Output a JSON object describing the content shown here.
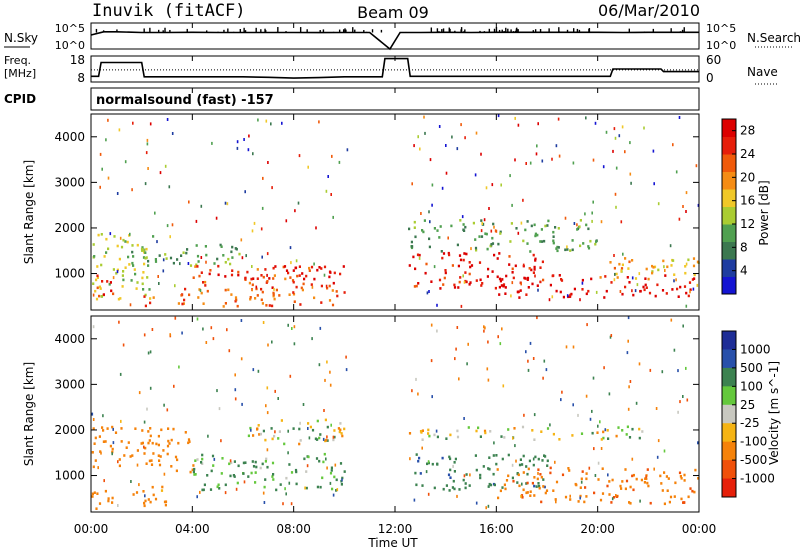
{
  "header": {
    "station": "Inuvik (fitACF)",
    "beam": "Beam 09",
    "date": "06/Mar/2010"
  },
  "panels": {
    "nsky": {
      "left_label": "N.Sky",
      "right_label": "N.Search",
      "left_ticks": [
        "10^5",
        "10^0"
      ],
      "right_ticks": [
        "10^5",
        "10^0"
      ]
    },
    "freq": {
      "left_label_1": "Freq.",
      "left_label_2": "[MHz]",
      "right_label": "Nave",
      "left_ticks": [
        "18",
        "8"
      ],
      "right_ticks": [
        "60",
        "0"
      ]
    },
    "cpid": {
      "label": "CPID",
      "value": "normalsound (fast) -157"
    }
  },
  "x_ticks": [
    "00:00",
    "04:00",
    "08:00",
    "12:00",
    "16:00",
    "20:00",
    "00:00"
  ],
  "x_title": "Time UT",
  "colors": {
    "power": [
      "#1414d2",
      "#1e3ca0",
      "#3c7850",
      "#50a050",
      "#aacc32",
      "#f0c828",
      "#f58c14",
      "#f05a0a",
      "#e61e0a",
      "#dc0000"
    ],
    "velocity": [
      "#1e2d96",
      "#2850aa",
      "#3c8250",
      "#64c83c",
      "#c8c8c0",
      "#f5b414",
      "#f5820a",
      "#f0500a",
      "#e6200a"
    ]
  },
  "chart_data": [
    {
      "type": "line",
      "title": "",
      "xlabel": "",
      "ylabel": "",
      "x": [
        0,
        0.5,
        1,
        2,
        3,
        4,
        5,
        6,
        7,
        8,
        9,
        10,
        11,
        11.8,
        12.2,
        13,
        14,
        15,
        16,
        17,
        18,
        19,
        20,
        21,
        22,
        23,
        24
      ],
      "series": [
        {
          "name": "N.Sky",
          "values": [
            500,
            2000,
            2000,
            1500,
            1500,
            1600,
            1500,
            1500,
            1500,
            1500,
            1400,
            1500,
            1500,
            1,
            1500,
            1500,
            1600,
            1500,
            1600,
            1600,
            1600,
            1600,
            1600,
            1500,
            1600,
            1600,
            1600
          ]
        }
      ],
      "ylim": [
        1,
        100000
      ],
      "log_y": true
    },
    {
      "type": "line",
      "title": "",
      "xlabel": "",
      "ylabel": "",
      "x": [
        0,
        0.3,
        0.4,
        2.0,
        2.1,
        6.0,
        7.0,
        8.0,
        9.0,
        10.0,
        11.5,
        11.6,
        12.5,
        12.6,
        16,
        20.5,
        20.6,
        22.5,
        22.6,
        24
      ],
      "series": [
        {
          "name": "Freq.",
          "values": [
            10.2,
            10.2,
            15.5,
            15.5,
            10.0,
            10.0,
            9.8,
            9.5,
            9.7,
            10.0,
            10.0,
            17.0,
            17.0,
            10.2,
            10.2,
            10.2,
            13.0,
            13.0,
            12.0,
            12.0
          ]
        },
        {
          "name": "Nave",
          "values": [
            28,
            28,
            28,
            28,
            28,
            28,
            28,
            28,
            28,
            28,
            28,
            28,
            28,
            28,
            28,
            28,
            28,
            28,
            28,
            28
          ]
        }
      ],
      "ylim": [
        8,
        18
      ],
      "ylim_right": [
        0,
        60
      ]
    },
    {
      "type": "heatmap",
      "title": "",
      "xlabel": "",
      "ylabel": "Slant Range [km]",
      "xlim": [
        0,
        24
      ],
      "ylim": [
        200,
        4500
      ],
      "y_ticks": [
        1000,
        2000,
        3000,
        4000
      ],
      "colorbar": {
        "label": "Power [dB]",
        "ticks": [
          4,
          8,
          12,
          16,
          20,
          24,
          28
        ],
        "range": [
          0,
          30
        ]
      },
      "regions": [
        {
          "t": [
            0,
            2.5
          ],
          "r": [
            400,
            1900
          ],
          "value": 14
        },
        {
          "t": [
            0,
            1.0
          ],
          "r": [
            500,
            1000
          ],
          "value": 26
        },
        {
          "t": [
            1.5,
            6
          ],
          "r": [
            1200,
            1700
          ],
          "value": 10
        },
        {
          "t": [
            4,
            10
          ],
          "r": [
            700,
            1200
          ],
          "value": 24
        },
        {
          "t": [
            6,
            10
          ],
          "r": [
            900,
            1200
          ],
          "value": 28
        },
        {
          "t": [
            2,
            10
          ],
          "r": [
            300,
            700
          ],
          "value": 22
        },
        {
          "t": [
            12.5,
            18
          ],
          "r": [
            700,
            1500
          ],
          "value": 27
        },
        {
          "t": [
            12.5,
            20
          ],
          "r": [
            1500,
            2200
          ],
          "value": 10
        },
        {
          "t": [
            16,
            24
          ],
          "r": [
            500,
            1000
          ],
          "value": 28
        },
        {
          "t": [
            20,
            24
          ],
          "r": [
            900,
            1400
          ],
          "value": 18
        }
      ]
    },
    {
      "type": "heatmap",
      "title": "",
      "xlabel": "Time UT",
      "ylabel": "Slant Range [km]",
      "xlim": [
        0,
        24
      ],
      "ylim": [
        200,
        4500
      ],
      "y_ticks": [
        1000,
        2000,
        3000,
        4000
      ],
      "colorbar": {
        "label": "Velocity [m s^-1]",
        "ticks": [
          1000,
          500,
          100,
          25,
          -25,
          -100,
          -500,
          -1000
        ]
      },
      "regions": [
        {
          "t": [
            0,
            4
          ],
          "r": [
            1100,
            2100
          ],
          "value": -300
        },
        {
          "t": [
            4,
            10
          ],
          "r": [
            700,
            1500
          ],
          "value": 150
        },
        {
          "t": [
            6,
            10
          ],
          "r": [
            1700,
            2300
          ],
          "value": 0
        },
        {
          "t": [
            12.5,
            18
          ],
          "r": [
            700,
            1500
          ],
          "value": 400
        },
        {
          "t": [
            12.5,
            22
          ],
          "r": [
            1800,
            2100
          ],
          "value": 0
        },
        {
          "t": [
            16,
            24
          ],
          "r": [
            400,
            1200
          ],
          "value": -400
        },
        {
          "t": [
            0,
            3
          ],
          "r": [
            300,
            800
          ],
          "value": -200
        }
      ]
    }
  ]
}
